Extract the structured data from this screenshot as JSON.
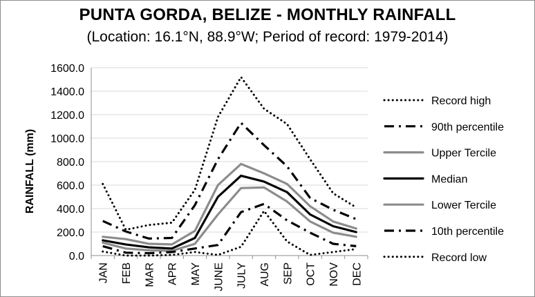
{
  "chart_data": {
    "type": "line",
    "title": "PUNTA GORDA, BELIZE - MONTHLY RAINFALL",
    "subtitle": "(Location: 16.1°N, 88.9°W; Period of record: 1979-2014)",
    "xlabel": "",
    "ylabel": "RAINFALL (mm)",
    "ylim": [
      0,
      1600
    ],
    "yticks": [
      "0.0",
      "200.0",
      "400.0",
      "600.0",
      "800.0",
      "1000.0",
      "1200.0",
      "1400.0",
      "1600.0"
    ],
    "categories": [
      "JAN",
      "FEB",
      "MAR",
      "APR",
      "MAY",
      "JUNE",
      "JULY",
      "AUG",
      "SEP",
      "OCT",
      "NOV",
      "DEC"
    ],
    "grid": true,
    "legend_position": "right",
    "series": [
      {
        "name": "Record high",
        "style": "dotted",
        "color": "#000000",
        "values": [
          610,
          220,
          260,
          280,
          560,
          1180,
          1520,
          1250,
          1120,
          820,
          530,
          410
        ]
      },
      {
        "name": "90th percentile",
        "style": "dashdot",
        "color": "#000000",
        "values": [
          295,
          205,
          145,
          150,
          430,
          820,
          1130,
          940,
          760,
          490,
          390,
          310
        ]
      },
      {
        "name": "Upper Tercile",
        "style": "solid",
        "color": "#8c8c8c",
        "values": [
          160,
          140,
          100,
          95,
          210,
          600,
          780,
          700,
          610,
          420,
          290,
          230
        ]
      },
      {
        "name": "Median",
        "style": "solid",
        "color": "#000000",
        "values": [
          130,
          95,
          70,
          60,
          150,
          500,
          680,
          630,
          540,
          350,
          250,
          200
        ]
      },
      {
        "name": "Lower Tercile",
        "style": "solid",
        "color": "#8c8c8c",
        "values": [
          110,
          60,
          45,
          40,
          100,
          350,
          575,
          580,
          460,
          290,
          195,
          160
        ]
      },
      {
        "name": "10th percentile",
        "style": "dashdot",
        "color": "#000000",
        "values": [
          80,
          25,
          20,
          30,
          60,
          90,
          370,
          440,
          300,
          195,
          100,
          80
        ]
      },
      {
        "name": "Record low",
        "style": "dotted",
        "color": "#000000",
        "values": [
          35,
          0,
          0,
          5,
          30,
          5,
          75,
          380,
          120,
          5,
          30,
          55
        ]
      }
    ]
  }
}
